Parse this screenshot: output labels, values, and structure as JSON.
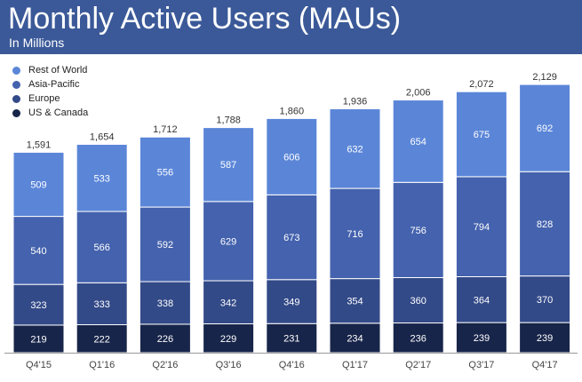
{
  "header": {
    "title": "Monthly Active Users (MAUs)",
    "subtitle": "In Millions"
  },
  "colors": {
    "header_bg": "#3b5998",
    "rest_of_world": "#5b86d8",
    "asia_pacific": "#4462ad",
    "europe": "#334a88",
    "us_canada": "#18254a"
  },
  "chart_data": {
    "type": "bar",
    "stacked": true,
    "title": "Monthly Active Users (MAUs)",
    "subtitle": "In Millions",
    "xlabel": "",
    "ylabel": "",
    "categories": [
      "Q4'15",
      "Q1'16",
      "Q2'16",
      "Q3'16",
      "Q4'16",
      "Q1'17",
      "Q2'17",
      "Q3'17",
      "Q4'17"
    ],
    "totals": [
      "1,591",
      "1,654",
      "1,712",
      "1,788",
      "1,860",
      "1,936",
      "2,006",
      "2,072",
      "2,129"
    ],
    "series": [
      {
        "name": "US & Canada",
        "color": "#18254a",
        "values": [
          219,
          222,
          226,
          229,
          231,
          234,
          236,
          239,
          239
        ]
      },
      {
        "name": "Europe",
        "color": "#334a88",
        "values": [
          323,
          333,
          338,
          342,
          349,
          354,
          360,
          364,
          370
        ]
      },
      {
        "name": "Asia-Pacific",
        "color": "#4462ad",
        "values": [
          540,
          566,
          592,
          629,
          673,
          716,
          756,
          794,
          828
        ]
      },
      {
        "name": "Rest of World",
        "color": "#5b86d8",
        "values": [
          509,
          533,
          556,
          587,
          606,
          632,
          654,
          675,
          692
        ]
      }
    ],
    "legend_order": [
      "Rest of World",
      "Asia-Pacific",
      "Europe",
      "US & Canada"
    ],
    "legend_position": "top-left",
    "grid": false
  }
}
